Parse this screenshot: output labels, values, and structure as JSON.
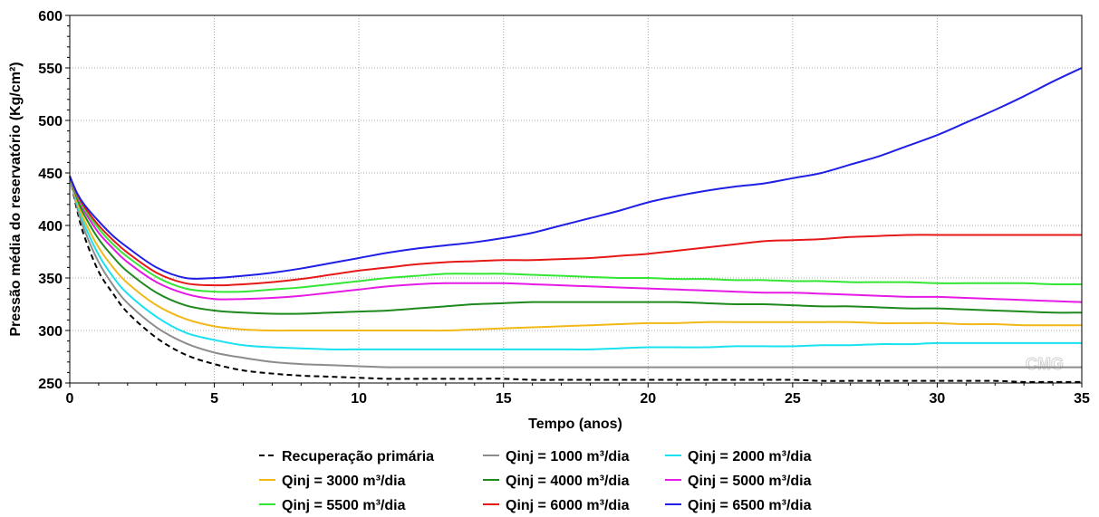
{
  "chart_data": {
    "type": "line",
    "title": "",
    "xlabel": "Tempo (anos)",
    "ylabel": "Pressão média do reservatório (Kg/cm²)",
    "xlim": [
      0,
      35
    ],
    "ylim": [
      250,
      600
    ],
    "xticks": [
      "0",
      "5",
      "10",
      "15",
      "20",
      "25",
      "30",
      "35"
    ],
    "yticks": [
      "250",
      "300",
      "350",
      "400",
      "450",
      "500",
      "550",
      "600"
    ],
    "grid": true,
    "legend_position": "bottom",
    "watermark": "CMG",
    "x": [
      0,
      0.25,
      0.5,
      1,
      1.5,
      2,
      3,
      4,
      5,
      6,
      7,
      8,
      9,
      10,
      11,
      12,
      13,
      14,
      15,
      16,
      17,
      18,
      19,
      20,
      21,
      22,
      23,
      24,
      25,
      26,
      27,
      28,
      29,
      30,
      31,
      32,
      33,
      34,
      35
    ],
    "series": [
      {
        "name": "Recuperação primária",
        "color": "#000000",
        "dashed": true,
        "values": [
          447,
          415,
          390,
          356,
          335,
          317,
          293,
          277,
          268,
          262,
          259,
          257,
          256,
          255,
          254,
          254,
          254,
          254,
          254,
          253,
          253,
          253,
          253,
          253,
          253,
          253,
          253,
          253,
          253,
          252,
          252,
          252,
          252,
          252,
          252,
          252,
          251,
          251,
          251
        ]
      },
      {
        "name": "Qinj = 1000 m³/dia",
        "color": "#8c8c8c",
        "dashed": false,
        "values": [
          447,
          418,
          396,
          365,
          343,
          326,
          303,
          288,
          279,
          274,
          270,
          268,
          267,
          266,
          265,
          265,
          265,
          265,
          265,
          265,
          265,
          265,
          265,
          265,
          265,
          265,
          265,
          265,
          265,
          265,
          265,
          265,
          265,
          265,
          265,
          265,
          265,
          265,
          265
        ]
      },
      {
        "name": "Qinj = 2000 m³/dia",
        "color": "#19e1f0",
        "dashed": false,
        "values": [
          447,
          421,
          401,
          372,
          351,
          335,
          313,
          298,
          291,
          286,
          284,
          283,
          282,
          282,
          282,
          282,
          282,
          282,
          282,
          282,
          282,
          282,
          283,
          284,
          284,
          284,
          285,
          285,
          285,
          286,
          286,
          287,
          287,
          288,
          288,
          288,
          288,
          288,
          288
        ]
      },
      {
        "name": "Qinj = 3000 m³/dia",
        "color": "#f2b818",
        "dashed": false,
        "values": [
          447,
          423,
          405,
          379,
          360,
          345,
          324,
          311,
          304,
          301,
          300,
          300,
          300,
          300,
          300,
          300,
          300,
          301,
          302,
          303,
          304,
          305,
          306,
          307,
          307,
          308,
          308,
          308,
          308,
          308,
          308,
          307,
          307,
          307,
          306,
          306,
          305,
          305,
          305
        ]
      },
      {
        "name": "Qinj = 4000 m³/dia",
        "color": "#1e8a1e",
        "dashed": false,
        "values": [
          447,
          426,
          410,
          387,
          370,
          356,
          336,
          324,
          319,
          317,
          316,
          316,
          317,
          318,
          319,
          321,
          323,
          325,
          326,
          327,
          327,
          327,
          327,
          327,
          327,
          326,
          325,
          325,
          324,
          323,
          323,
          322,
          321,
          321,
          320,
          319,
          318,
          317,
          317
        ]
      },
      {
        "name": "Qinj = 5000 m³/dia",
        "color": "#e619e6",
        "dashed": false,
        "values": [
          447,
          428,
          414,
          393,
          378,
          365,
          346,
          335,
          330,
          330,
          331,
          333,
          336,
          339,
          342,
          344,
          345,
          345,
          345,
          344,
          343,
          342,
          341,
          340,
          339,
          338,
          337,
          336,
          336,
          335,
          334,
          333,
          332,
          332,
          331,
          330,
          329,
          328,
          327
        ]
      },
      {
        "name": "Qinj = 5500 m³/dia",
        "color": "#33e633",
        "dashed": false,
        "values": [
          447,
          429,
          416,
          397,
          382,
          370,
          351,
          340,
          337,
          337,
          339,
          341,
          344,
          347,
          350,
          352,
          354,
          354,
          354,
          353,
          352,
          351,
          350,
          350,
          349,
          349,
          348,
          348,
          347,
          347,
          346,
          346,
          346,
          345,
          345,
          345,
          345,
          344,
          344
        ]
      },
      {
        "name": "Qinj = 6000 m³/dia",
        "color": "#e61919",
        "dashed": false,
        "values": [
          447,
          430,
          418,
          400,
          386,
          374,
          355,
          345,
          343,
          344,
          346,
          349,
          353,
          357,
          360,
          363,
          365,
          366,
          367,
          367,
          368,
          369,
          371,
          373,
          376,
          379,
          382,
          385,
          386,
          387,
          389,
          390,
          391,
          391,
          391,
          391,
          391,
          391,
          391
        ]
      },
      {
        "name": "Qinj = 6500 m³/dia",
        "color": "#1f1fe6",
        "dashed": false,
        "values": [
          447,
          431,
          420,
          404,
          390,
          379,
          360,
          350,
          350,
          352,
          355,
          359,
          364,
          369,
          374,
          378,
          381,
          384,
          388,
          393,
          400,
          407,
          414,
          422,
          428,
          433,
          437,
          440,
          445,
          450,
          458,
          466,
          476,
          486,
          498,
          510,
          523,
          537,
          550
        ]
      }
    ]
  }
}
